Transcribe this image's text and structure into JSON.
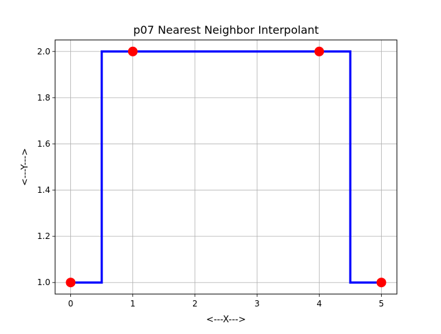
{
  "chart_data": {
    "type": "line",
    "title": "p07 Nearest Neighbor Interpolant",
    "xlabel": "<---X--->",
    "ylabel": "<---Y--->",
    "xlim": [
      -0.25,
      5.25
    ],
    "ylim": [
      0.95,
      2.05
    ],
    "grid": true,
    "x_ticks": [
      0,
      1,
      2,
      3,
      4,
      5
    ],
    "x_tick_labels": [
      "0",
      "1",
      "2",
      "3",
      "4",
      "5"
    ],
    "y_ticks": [
      1.0,
      1.2,
      1.4,
      1.6,
      1.8,
      2.0
    ],
    "y_tick_labels": [
      "1.0",
      "1.2",
      "1.4",
      "1.6",
      "1.8",
      "2.0"
    ],
    "series": [
      {
        "kind": "step-line",
        "color": "#0000ff",
        "x": [
          0,
          0.5,
          0.5,
          2.5,
          4.5,
          4.5,
          5
        ],
        "y": [
          1,
          1,
          2,
          2,
          2,
          1,
          1
        ]
      },
      {
        "kind": "markers",
        "color": "#ff0000",
        "x": [
          0,
          1,
          4,
          5
        ],
        "y": [
          1,
          2,
          2,
          1
        ]
      }
    ]
  }
}
